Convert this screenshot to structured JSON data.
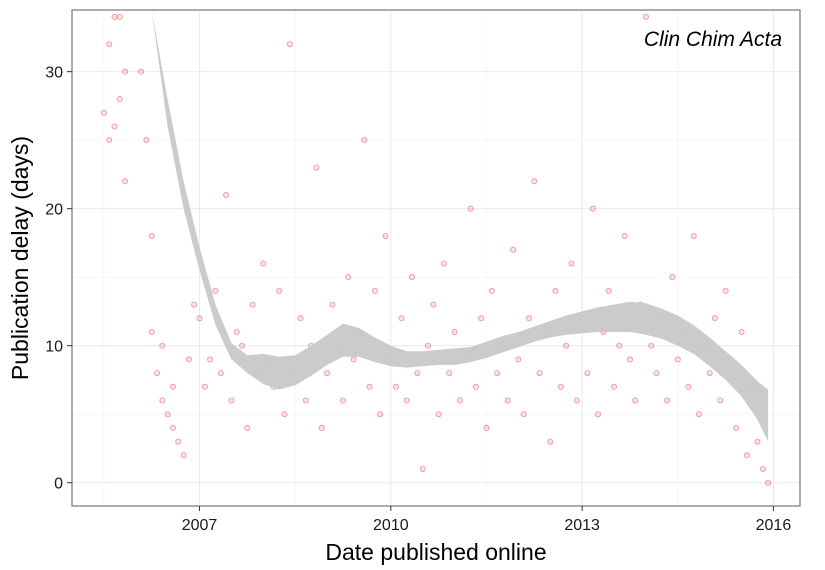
{
  "chart_data": {
    "type": "scatter",
    "xlabel": "Date published online",
    "ylabel": "Publication delay (days)",
    "annotation": "Clin Chim Acta",
    "x_ticks": [
      "2007",
      "2010",
      "2013",
      "2016"
    ],
    "y_ticks": [
      "0",
      "10",
      "20",
      "30"
    ],
    "xlim": [
      "2005-01",
      "2016-06"
    ],
    "ylim": [
      -1.7,
      34.5
    ],
    "grid": true,
    "legend": "none",
    "point_color": "#e41a1c",
    "smooth_band_color": "#c8c8c8",
    "smooth_band": [
      {
        "x": "2006-04",
        "lo": 34.5,
        "hi": 34.5
      },
      {
        "x": "2006-07",
        "lo": 26.0,
        "hi": 28.0
      },
      {
        "x": "2006-10",
        "lo": 20.0,
        "hi": 22.0
      },
      {
        "x": "2007-01",
        "lo": 15.5,
        "hi": 17.2
      },
      {
        "x": "2007-04",
        "lo": 11.5,
        "hi": 13.0
      },
      {
        "x": "2007-07",
        "lo": 9.0,
        "hi": 10.2
      },
      {
        "x": "2007-10",
        "lo": 8.0,
        "hi": 9.3
      },
      {
        "x": "2008-01",
        "lo": 7.2,
        "hi": 9.4
      },
      {
        "x": "2008-04",
        "lo": 6.8,
        "hi": 9.2
      },
      {
        "x": "2008-07",
        "lo": 7.1,
        "hi": 9.3
      },
      {
        "x": "2008-10",
        "lo": 7.8,
        "hi": 10.0
      },
      {
        "x": "2009-01",
        "lo": 8.6,
        "hi": 10.8
      },
      {
        "x": "2009-04",
        "lo": 9.2,
        "hi": 11.6
      },
      {
        "x": "2009-07",
        "lo": 9.2,
        "hi": 11.3
      },
      {
        "x": "2009-10",
        "lo": 8.8,
        "hi": 10.6
      },
      {
        "x": "2010-01",
        "lo": 8.5,
        "hi": 10.0
      },
      {
        "x": "2010-04",
        "lo": 8.4,
        "hi": 9.6
      },
      {
        "x": "2010-07",
        "lo": 8.5,
        "hi": 9.6
      },
      {
        "x": "2010-10",
        "lo": 8.6,
        "hi": 9.7
      },
      {
        "x": "2011-01",
        "lo": 8.6,
        "hi": 9.8
      },
      {
        "x": "2011-04",
        "lo": 8.8,
        "hi": 9.9
      },
      {
        "x": "2011-07",
        "lo": 9.1,
        "hi": 10.3
      },
      {
        "x": "2011-10",
        "lo": 9.5,
        "hi": 10.7
      },
      {
        "x": "2012-01",
        "lo": 9.9,
        "hi": 11.0
      },
      {
        "x": "2012-04",
        "lo": 10.3,
        "hi": 11.4
      },
      {
        "x": "2012-07",
        "lo": 10.6,
        "hi": 11.8
      },
      {
        "x": "2012-10",
        "lo": 10.8,
        "hi": 12.2
      },
      {
        "x": "2013-01",
        "lo": 10.9,
        "hi": 12.5
      },
      {
        "x": "2013-04",
        "lo": 11.0,
        "hi": 12.8
      },
      {
        "x": "2013-07",
        "lo": 11.0,
        "hi": 13.0
      },
      {
        "x": "2013-10",
        "lo": 11.0,
        "hi": 13.2
      },
      {
        "x": "2014-01",
        "lo": 10.8,
        "hi": 13.1
      },
      {
        "x": "2014-04",
        "lo": 10.5,
        "hi": 12.7
      },
      {
        "x": "2014-07",
        "lo": 10.0,
        "hi": 12.2
      },
      {
        "x": "2014-10",
        "lo": 9.4,
        "hi": 11.5
      },
      {
        "x": "2015-01",
        "lo": 8.5,
        "hi": 10.6
      },
      {
        "x": "2015-04",
        "lo": 7.5,
        "hi": 9.6
      },
      {
        "x": "2015-07",
        "lo": 6.3,
        "hi": 8.6
      },
      {
        "x": "2015-10",
        "lo": 4.6,
        "hi": 7.4
      },
      {
        "x": "2015-12",
        "lo": 3.0,
        "hi": 6.8
      }
    ],
    "points": [
      {
        "x": "2005-07",
        "y": 27
      },
      {
        "x": "2005-08",
        "y": 32
      },
      {
        "x": "2005-09",
        "y": 26
      },
      {
        "x": "2005-10",
        "y": 28
      },
      {
        "x": "2005-11",
        "y": 30
      },
      {
        "x": "2005-08",
        "y": 25
      },
      {
        "x": "2005-09",
        "y": 34
      },
      {
        "x": "2005-10",
        "y": 34
      },
      {
        "x": "2005-11",
        "y": 22
      },
      {
        "x": "2006-02",
        "y": 30
      },
      {
        "x": "2006-03",
        "y": 25
      },
      {
        "x": "2006-04",
        "y": 18
      },
      {
        "x": "2006-04",
        "y": 11
      },
      {
        "x": "2006-05",
        "y": 8
      },
      {
        "x": "2006-06",
        "y": 6
      },
      {
        "x": "2006-07",
        "y": 5
      },
      {
        "x": "2006-08",
        "y": 4
      },
      {
        "x": "2006-09",
        "y": 3
      },
      {
        "x": "2006-10",
        "y": 2
      },
      {
        "x": "2006-11",
        "y": 9
      },
      {
        "x": "2006-12",
        "y": 13
      },
      {
        "x": "2006-06",
        "y": 10
      },
      {
        "x": "2006-08",
        "y": 7
      },
      {
        "x": "2007-01",
        "y": 12
      },
      {
        "x": "2007-02",
        "y": 7
      },
      {
        "x": "2007-03",
        "y": 9
      },
      {
        "x": "2007-04",
        "y": 14
      },
      {
        "x": "2007-05",
        "y": 8
      },
      {
        "x": "2007-06",
        "y": 21
      },
      {
        "x": "2007-07",
        "y": 6
      },
      {
        "x": "2007-08",
        "y": 11
      },
      {
        "x": "2007-09",
        "y": 10
      },
      {
        "x": "2007-10",
        "y": 4
      },
      {
        "x": "2007-11",
        "y": 13
      },
      {
        "x": "2007-12",
        "y": 8
      },
      {
        "x": "2008-01",
        "y": 16
      },
      {
        "x": "2008-02",
        "y": 9
      },
      {
        "x": "2008-03",
        "y": 7
      },
      {
        "x": "2008-04",
        "y": 14
      },
      {
        "x": "2008-05",
        "y": 5
      },
      {
        "x": "2008-06",
        "y": 32
      },
      {
        "x": "2008-07",
        "y": 8
      },
      {
        "x": "2008-08",
        "y": 12
      },
      {
        "x": "2008-09",
        "y": 6
      },
      {
        "x": "2008-10",
        "y": 10
      },
      {
        "x": "2008-11",
        "y": 23
      },
      {
        "x": "2008-12",
        "y": 4
      },
      {
        "x": "2009-01",
        "y": 8
      },
      {
        "x": "2009-02",
        "y": 13
      },
      {
        "x": "2009-03",
        "y": 10
      },
      {
        "x": "2009-04",
        "y": 6
      },
      {
        "x": "2009-05",
        "y": 15
      },
      {
        "x": "2009-06",
        "y": 9
      },
      {
        "x": "2009-07",
        "y": 11
      },
      {
        "x": "2009-08",
        "y": 25
      },
      {
        "x": "2009-09",
        "y": 7
      },
      {
        "x": "2009-10",
        "y": 14
      },
      {
        "x": "2009-11",
        "y": 5
      },
      {
        "x": "2009-12",
        "y": 18
      },
      {
        "x": "2010-01",
        "y": 9
      },
      {
        "x": "2010-02",
        "y": 7
      },
      {
        "x": "2010-03",
        "y": 12
      },
      {
        "x": "2010-04",
        "y": 6
      },
      {
        "x": "2010-05",
        "y": 15
      },
      {
        "x": "2010-06",
        "y": 8
      },
      {
        "x": "2010-07",
        "y": 1
      },
      {
        "x": "2010-08",
        "y": 10
      },
      {
        "x": "2010-09",
        "y": 13
      },
      {
        "x": "2010-10",
        "y": 5
      },
      {
        "x": "2010-11",
        "y": 16
      },
      {
        "x": "2010-12",
        "y": 8
      },
      {
        "x": "2011-01",
        "y": 11
      },
      {
        "x": "2011-02",
        "y": 6
      },
      {
        "x": "2011-03",
        "y": 9
      },
      {
        "x": "2011-04",
        "y": 20
      },
      {
        "x": "2011-05",
        "y": 7
      },
      {
        "x": "2011-06",
        "y": 12
      },
      {
        "x": "2011-07",
        "y": 4
      },
      {
        "x": "2011-08",
        "y": 14
      },
      {
        "x": "2011-09",
        "y": 8
      },
      {
        "x": "2011-10",
        "y": 10
      },
      {
        "x": "2011-11",
        "y": 6
      },
      {
        "x": "2011-12",
        "y": 17
      },
      {
        "x": "2012-01",
        "y": 9
      },
      {
        "x": "2012-02",
        "y": 5
      },
      {
        "x": "2012-03",
        "y": 12
      },
      {
        "x": "2012-04",
        "y": 22
      },
      {
        "x": "2012-05",
        "y": 8
      },
      {
        "x": "2012-06",
        "y": 11
      },
      {
        "x": "2012-07",
        "y": 3
      },
      {
        "x": "2012-08",
        "y": 14
      },
      {
        "x": "2012-09",
        "y": 7
      },
      {
        "x": "2012-10",
        "y": 10
      },
      {
        "x": "2012-11",
        "y": 16
      },
      {
        "x": "2012-12",
        "y": 6
      },
      {
        "x": "2013-01",
        "y": 12
      },
      {
        "x": "2013-02",
        "y": 8
      },
      {
        "x": "2013-03",
        "y": 20
      },
      {
        "x": "2013-04",
        "y": 5
      },
      {
        "x": "2013-05",
        "y": 11
      },
      {
        "x": "2013-06",
        "y": 14
      },
      {
        "x": "2013-07",
        "y": 7
      },
      {
        "x": "2013-08",
        "y": 10
      },
      {
        "x": "2013-09",
        "y": 18
      },
      {
        "x": "2013-10",
        "y": 9
      },
      {
        "x": "2013-11",
        "y": 6
      },
      {
        "x": "2013-12",
        "y": 13
      },
      {
        "x": "2014-01",
        "y": 34
      },
      {
        "x": "2014-02",
        "y": 10
      },
      {
        "x": "2014-03",
        "y": 8
      },
      {
        "x": "2014-04",
        "y": 12
      },
      {
        "x": "2014-05",
        "y": 6
      },
      {
        "x": "2014-06",
        "y": 15
      },
      {
        "x": "2014-07",
        "y": 9
      },
      {
        "x": "2014-08",
        "y": 11
      },
      {
        "x": "2014-09",
        "y": 7
      },
      {
        "x": "2014-10",
        "y": 18
      },
      {
        "x": "2014-11",
        "y": 5
      },
      {
        "x": "2014-12",
        "y": 10
      },
      {
        "x": "2015-01",
        "y": 8
      },
      {
        "x": "2015-02",
        "y": 12
      },
      {
        "x": "2015-03",
        "y": 6
      },
      {
        "x": "2015-04",
        "y": 14
      },
      {
        "x": "2015-05",
        "y": 9
      },
      {
        "x": "2015-06",
        "y": 4
      },
      {
        "x": "2015-07",
        "y": 11
      },
      {
        "x": "2015-08",
        "y": 2
      },
      {
        "x": "2015-09",
        "y": 7
      },
      {
        "x": "2015-10",
        "y": 3
      },
      {
        "x": "2015-11",
        "y": 1
      },
      {
        "x": "2015-12",
        "y": 0
      }
    ]
  }
}
